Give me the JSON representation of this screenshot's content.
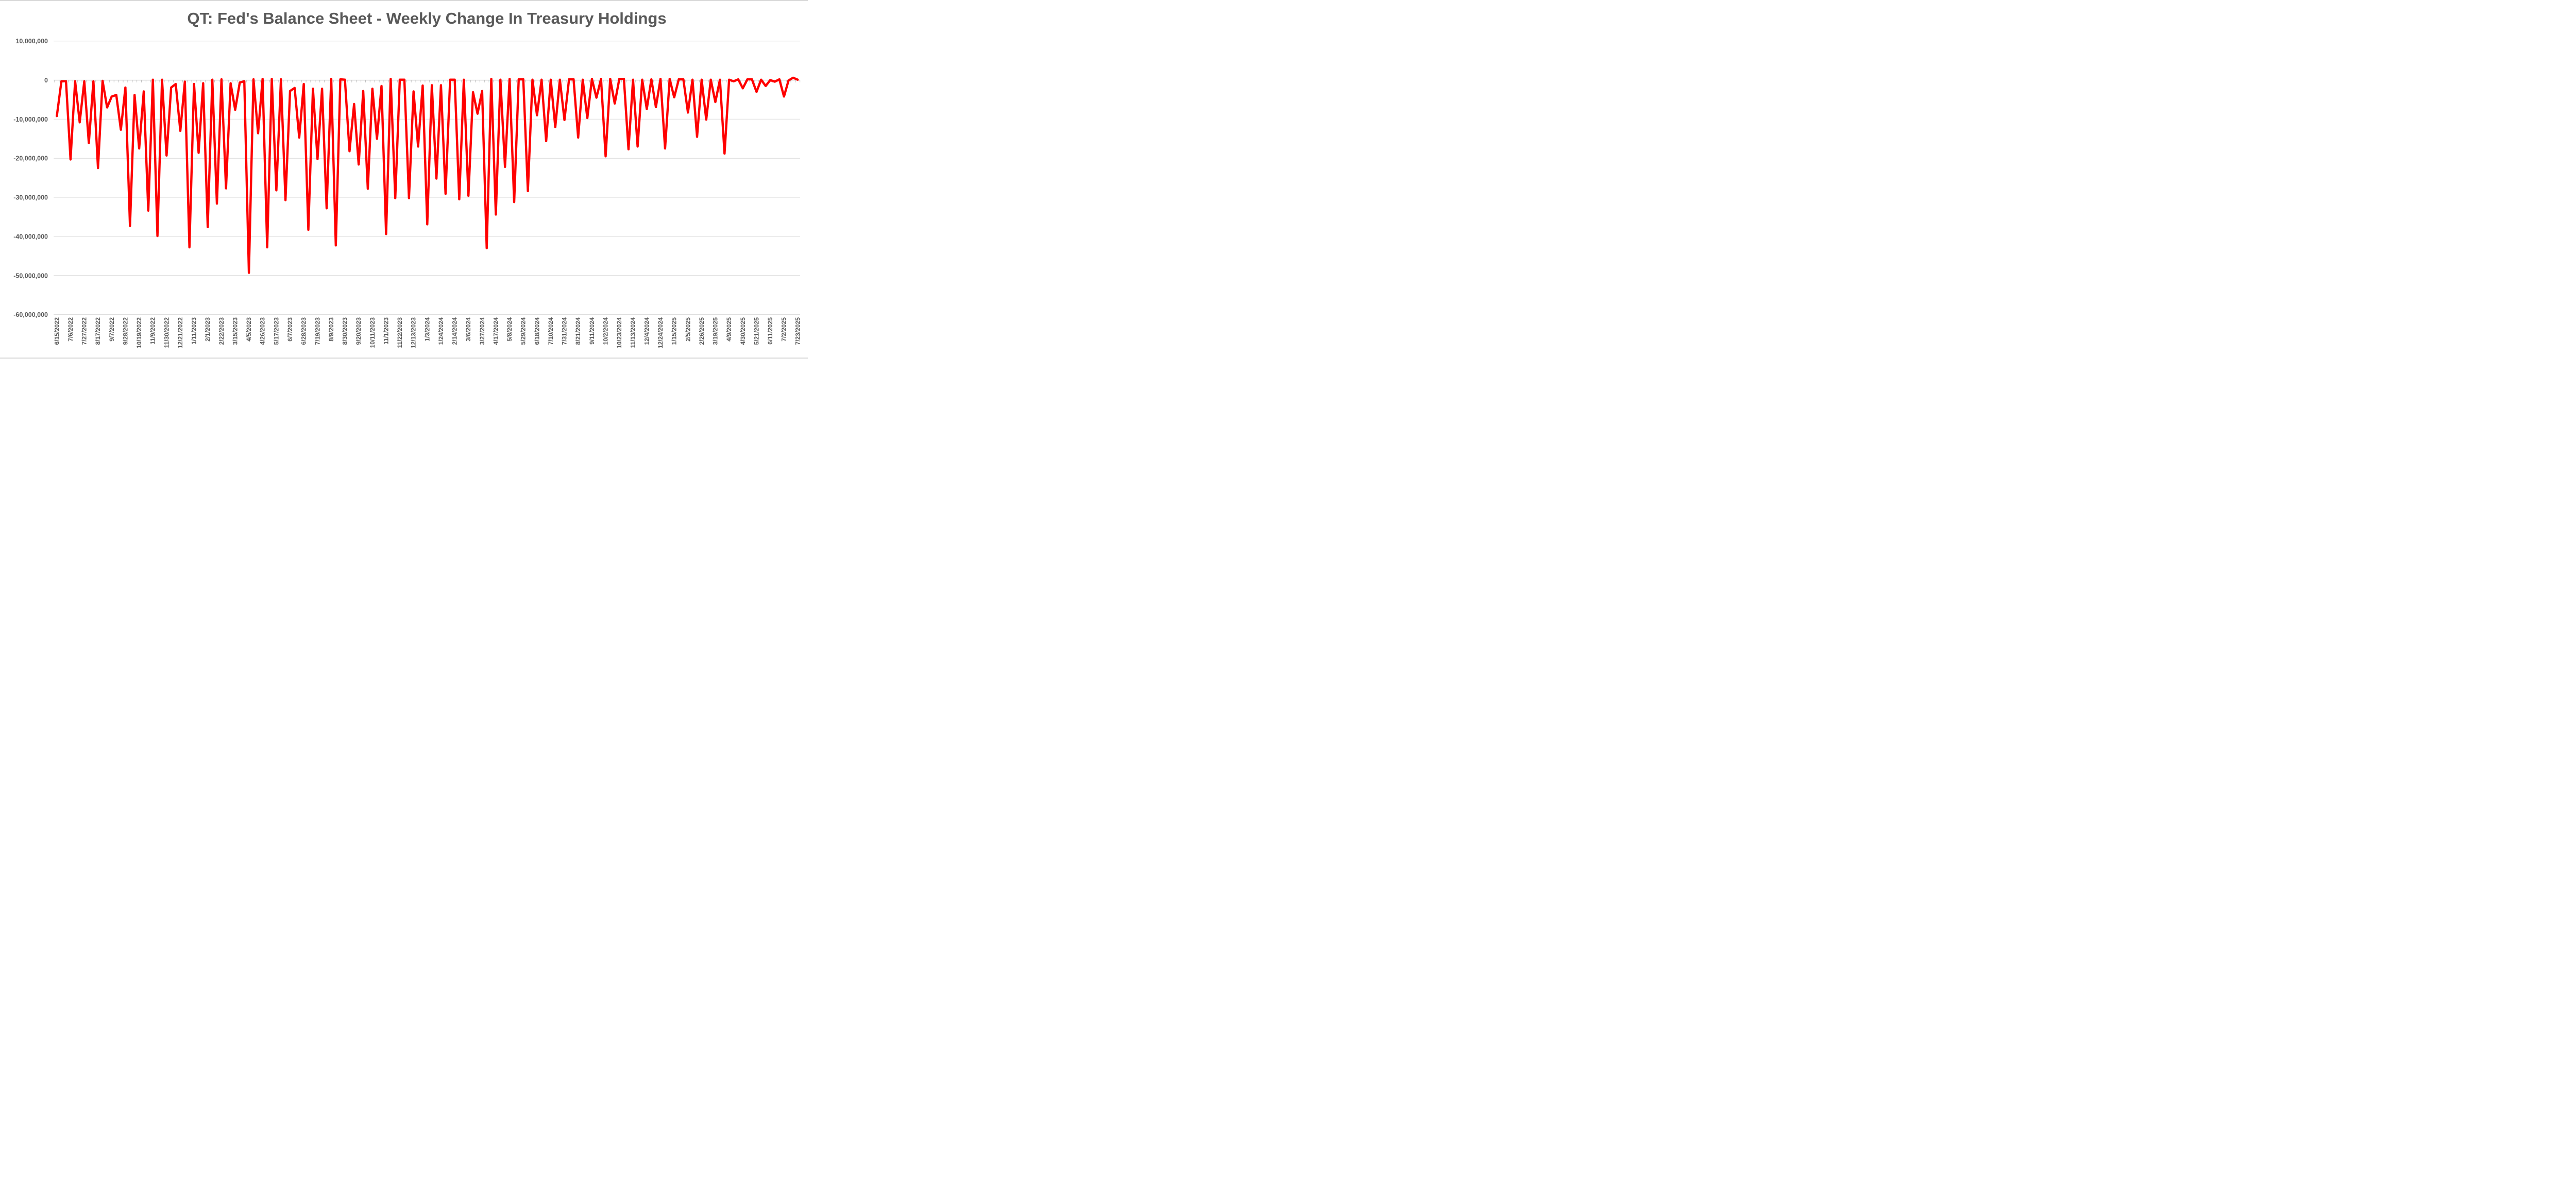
{
  "chart_data": {
    "type": "line",
    "title": "QT: Fed's Balance Sheet - Weekly Change In Treasury Holdings",
    "xlabel": "",
    "ylabel": "",
    "legend": false,
    "grid": true,
    "series_name": "weekly-change-in-treasury-holdings",
    "x_tick_label_interval": 3,
    "y_axis": {
      "min": -60000000,
      "max": 10000000,
      "step": 10000000,
      "tick_values": [
        10000000,
        0,
        -10000000,
        -20000000,
        -30000000,
        -40000000,
        -50000000,
        -60000000
      ],
      "tick_labels": [
        "10,000,000",
        "0",
        "-10,000,000",
        "-20,000,000",
        "-30,000,000",
        "-40,000,000",
        "-50,000,000",
        "-60,000,000"
      ]
    },
    "colors": {
      "line": "#FF0000",
      "grid": "#D9D9D9",
      "axis": "#BFBFBF",
      "text": "#595959",
      "background": "#FFFFFF"
    },
    "x": [
      "6/15/2022",
      "6/22/2022",
      "6/29/2022",
      "7/6/2022",
      "7/13/2022",
      "7/20/2022",
      "7/27/2022",
      "8/3/2022",
      "8/10/2022",
      "8/17/2022",
      "8/24/2022",
      "8/31/2022",
      "9/7/2022",
      "9/14/2022",
      "9/21/2022",
      "9/28/2022",
      "10/5/2022",
      "10/12/2022",
      "10/19/2022",
      "10/26/2022",
      "11/2/2022",
      "11/9/2022",
      "11/16/2022",
      "11/23/2022",
      "11/30/2022",
      "12/7/2022",
      "12/14/2022",
      "12/21/2022",
      "12/28/2022",
      "1/4/2023",
      "1/11/2023",
      "1/18/2023",
      "1/25/2023",
      "2/1/2023",
      "2/8/2023",
      "2/15/2023",
      "2/22/2023",
      "3/1/2023",
      "3/8/2023",
      "3/15/2023",
      "3/22/2023",
      "3/29/2023",
      "4/5/2023",
      "4/12/2023",
      "4/19/2023",
      "4/26/2023",
      "5/3/2023",
      "5/10/2023",
      "5/17/2023",
      "5/24/2023",
      "5/31/2023",
      "6/7/2023",
      "6/14/2023",
      "6/21/2023",
      "6/28/2023",
      "7/5/2023",
      "7/12/2023",
      "7/19/2023",
      "7/26/2023",
      "8/2/2023",
      "8/9/2023",
      "8/16/2023",
      "8/23/2023",
      "8/30/2023",
      "9/6/2023",
      "9/13/2023",
      "9/20/2023",
      "9/27/2023",
      "10/4/2023",
      "10/11/2023",
      "10/18/2023",
      "10/25/2023",
      "11/1/2023",
      "11/8/2023",
      "11/15/2023",
      "11/22/2023",
      "11/29/2023",
      "12/6/2023",
      "12/13/2023",
      "12/20/2023",
      "12/27/2023",
      "1/3/2024",
      "1/10/2024",
      "1/17/2024",
      "1/24/2024",
      "1/31/2024",
      "2/7/2024",
      "2/14/2024",
      "2/21/2024",
      "2/28/2024",
      "3/6/2024",
      "3/13/2024",
      "3/20/2024",
      "3/27/2024",
      "4/3/2024",
      "4/10/2024",
      "4/17/2024",
      "4/24/2024",
      "5/1/2024",
      "5/8/2024",
      "5/15/2024",
      "5/22/2024",
      "5/29/2024",
      "6/5/2024",
      "6/12/2024",
      "6/18/2024",
      "6/26/2024",
      "7/3/2024",
      "7/10/2024",
      "7/17/2024",
      "7/24/2024",
      "7/31/2024",
      "8/7/2024",
      "8/14/2024",
      "8/21/2024",
      "8/28/2024",
      "9/4/2024",
      "9/11/2024",
      "9/18/2024",
      "9/25/2024",
      "10/2/2024",
      "10/9/2024",
      "10/16/2024",
      "10/23/2024",
      "10/30/2024",
      "11/6/2024",
      "11/13/2024",
      "11/20/2024",
      "11/27/2024",
      "12/4/2024",
      "12/11/2024",
      "12/18/2024",
      "12/24/2024",
      "12/31/2024",
      "1/8/2025",
      "1/15/2025",
      "1/22/2025",
      "1/29/2025",
      "2/5/2025",
      "2/12/2025",
      "2/19/2025",
      "2/26/2025",
      "3/5/2025",
      "3/12/2025",
      "3/19/2025",
      "3/26/2025",
      "4/2/2025",
      "4/9/2025",
      "4/16/2025",
      "4/23/2025",
      "4/30/2025",
      "5/7/2025",
      "5/14/2025",
      "5/21/2025",
      "5/28/2025",
      "6/4/2025",
      "6/11/2025",
      "6/18/2025",
      "6/25/2025",
      "7/2/2025",
      "7/9/2025",
      "7/16/2025",
      "7/23/2025"
    ],
    "values": [
      -9200000,
      -300000,
      -300000,
      -20300000,
      -300000,
      -10800000,
      -300000,
      -16100000,
      -300000,
      -22500000,
      -200000,
      -7000000,
      -4200000,
      -3800000,
      -12700000,
      -1900000,
      -37300000,
      -3800000,
      -17500000,
      -2900000,
      -33400000,
      100000,
      -39900000,
      100000,
      -19300000,
      -1900000,
      -1000000,
      -13000000,
      -400000,
      -42800000,
      -1000000,
      -18600000,
      -800000,
      -37600000,
      100000,
      -31600000,
      200000,
      -27700000,
      -800000,
      -7600000,
      -600000,
      -300000,
      -49300000,
      200000,
      -13600000,
      300000,
      -42800000,
      300000,
      -28200000,
      200000,
      -30700000,
      -2800000,
      -2000000,
      -14700000,
      -1000000,
      -38300000,
      -2200000,
      -20200000,
      -2200000,
      -32800000,
      300000,
      -42300000,
      200000,
      100000,
      -18200000,
      -6100000,
      -21600000,
      -2800000,
      -27800000,
      -2200000,
      -15000000,
      -1500000,
      -39400000,
      300000,
      -30200000,
      100000,
      100000,
      -30200000,
      -2900000,
      -17000000,
      -1400000,
      -36900000,
      -1300000,
      -25200000,
      -1300000,
      -29100000,
      100000,
      100000,
      -30500000,
      100000,
      -29600000,
      -3100000,
      -8600000,
      -2800000,
      -43000000,
      300000,
      -34400000,
      100000,
      -22200000,
      300000,
      -31200000,
      200000,
      200000,
      -28400000,
      100000,
      -9000000,
      100000,
      -15600000,
      100000,
      -12000000,
      100000,
      -10200000,
      200000,
      200000,
      -14700000,
      100000,
      -9700000,
      300000,
      -4500000,
      300000,
      -19500000,
      300000,
      -6000000,
      300000,
      300000,
      -17700000,
      100000,
      -17000000,
      100000,
      -7400000,
      200000,
      -6900000,
      300000,
      -17500000,
      300000,
      -4400000,
      200000,
      200000,
      -8300000,
      100000,
      -14500000,
      100000,
      -10100000,
      100000,
      -5600000,
      100000,
      -18800000,
      100000,
      -300000,
      200000,
      -2100000,
      200000,
      200000,
      -3000000,
      100000,
      -1500000,
      0,
      -400000,
      200000,
      -4200000,
      -100000,
      600000,
      100000
    ]
  }
}
